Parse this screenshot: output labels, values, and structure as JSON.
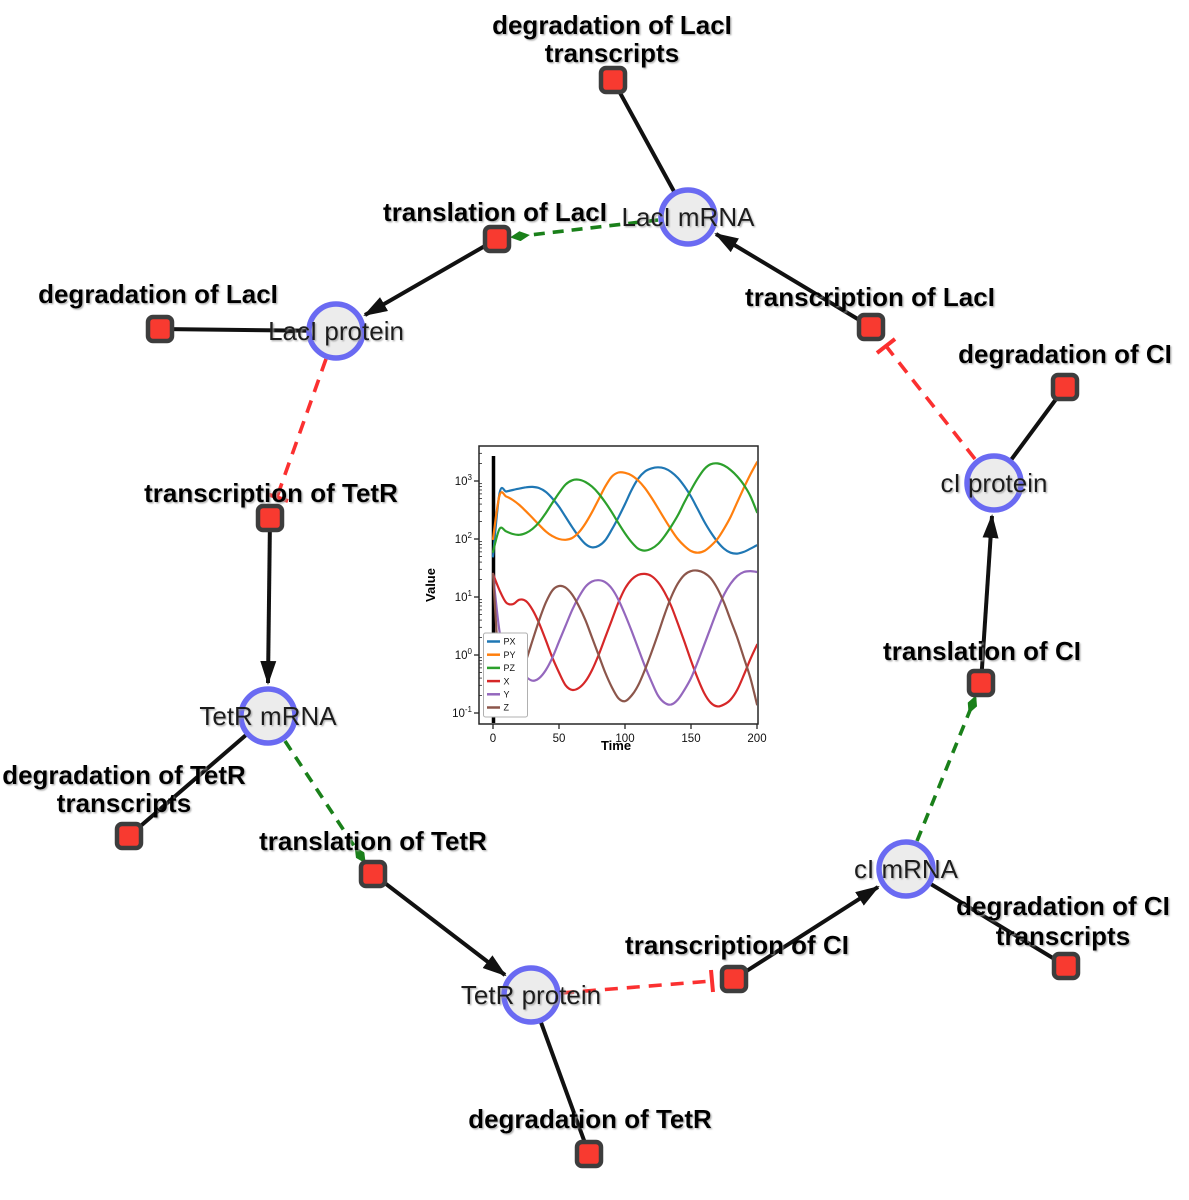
{
  "diagram": {
    "species": {
      "laci_mrna": {
        "label": "LacI mRNA"
      },
      "laci_protein": {
        "label": "LacI protein"
      },
      "tetr_mrna": {
        "label": "TetR mRNA"
      },
      "tetr_protein": {
        "label": "TetR protein"
      },
      "ci_mrna": {
        "label": "cI mRNA"
      },
      "ci_protein": {
        "label": "cI protein"
      }
    },
    "reactions": {
      "deg_laci_tx": {
        "line1": "degradation of LacI",
        "line2": "transcripts"
      },
      "tl_laci": {
        "label": "translation of LacI"
      },
      "tx_laci": {
        "label": "transcription of LacI"
      },
      "deg_laci": {
        "label": "degradation of LacI"
      },
      "tx_tetr": {
        "label": "transcription of TetR"
      },
      "deg_tetr_tx": {
        "line1": "degradation of TetR",
        "line2": "transcripts"
      },
      "tl_tetr": {
        "label": "translation of TetR"
      },
      "deg_tetr": {
        "label": "degradation of TetR"
      },
      "tx_ci": {
        "label": "transcription of CI"
      },
      "deg_ci_tx": {
        "line1": "degradation of CI",
        "line2": "transcripts"
      },
      "tl_ci": {
        "label": "translation of CI"
      },
      "deg_ci": {
        "label": "degradation of CI"
      }
    },
    "edges": [
      {
        "from": "LacI mRNA",
        "to": "degradation of LacI transcripts",
        "type": "reactant"
      },
      {
        "from": "LacI protein",
        "to": "degradation of LacI",
        "type": "reactant"
      },
      {
        "from": "TetR mRNA",
        "to": "degradation of TetR transcripts",
        "type": "reactant"
      },
      {
        "from": "TetR protein",
        "to": "degradation of TetR",
        "type": "reactant"
      },
      {
        "from": "cI mRNA",
        "to": "degradation of CI transcripts",
        "type": "reactant"
      },
      {
        "from": "cI protein",
        "to": "degradation of CI",
        "type": "reactant"
      },
      {
        "from": "translation of LacI",
        "to": "LacI protein",
        "type": "product"
      },
      {
        "from": "transcription of LacI",
        "to": "LacI mRNA",
        "type": "product"
      },
      {
        "from": "transcription of TetR",
        "to": "TetR mRNA",
        "type": "product"
      },
      {
        "from": "translation of TetR",
        "to": "TetR protein",
        "type": "product"
      },
      {
        "from": "transcription of CI",
        "to": "cI mRNA",
        "type": "product"
      },
      {
        "from": "translation of CI",
        "to": "cI protein",
        "type": "product"
      },
      {
        "from": "LacI mRNA",
        "to": "translation of LacI",
        "type": "modifier"
      },
      {
        "from": "TetR mRNA",
        "to": "translation of TetR",
        "type": "modifier"
      },
      {
        "from": "cI mRNA",
        "to": "translation of CI",
        "type": "modifier"
      },
      {
        "from": "LacI protein",
        "to": "transcription of TetR",
        "type": "inhibition"
      },
      {
        "from": "TetR protein",
        "to": "transcription of CI",
        "type": "inhibition"
      },
      {
        "from": "cI protein",
        "to": "transcription of LacI",
        "type": "inhibition"
      }
    ],
    "colors": {
      "species_fill": "#ececec",
      "species_stroke": "#6a6af2",
      "reaction_fill": "#f83a30",
      "reaction_stroke": "#3d3d3d",
      "edge": "#111111",
      "modifier": "#1a801a",
      "inhibition": "#fb3030"
    }
  },
  "chart_data": {
    "type": "line",
    "title": "",
    "xlabel": "Time",
    "ylabel": "Value",
    "yscale": "log",
    "xlim": [
      -10,
      201
    ],
    "ylim_exponents": [
      -1.2,
      3.6
    ],
    "x_ticks": [
      0,
      50,
      100,
      150,
      200
    ],
    "y_tick_exponents": [
      -1,
      0,
      1,
      2,
      3
    ],
    "vline_x": 0,
    "legend_position": "lower left",
    "t_step": 5,
    "series": [
      {
        "name": "PX",
        "color": "#1f77b4",
        "values": [
          50,
          620,
          660,
          700,
          740,
          780,
          790,
          755,
          650,
          500,
          360,
          240,
          160,
          110,
          82,
          72,
          76,
          95,
          145,
          235,
          400,
          700,
          1100,
          1450,
          1650,
          1720,
          1650,
          1430,
          1130,
          810,
          540,
          330,
          200,
          130,
          90,
          68,
          58,
          56,
          60,
          68,
          78
        ]
      },
      {
        "name": "PY",
        "color": "#ff7f0e",
        "values": [
          100,
          570,
          540,
          470,
          385,
          300,
          230,
          175,
          135,
          112,
          100,
          97,
          104,
          130,
          185,
          290,
          480,
          800,
          1190,
          1400,
          1385,
          1250,
          1020,
          760,
          520,
          340,
          220,
          145,
          100,
          76,
          62,
          58,
          62,
          76,
          100,
          150,
          240,
          430,
          760,
          1300,
          2100
        ]
      },
      {
        "name": "PZ",
        "color": "#2ca02c",
        "values": [
          60,
          150,
          135,
          122,
          118,
          127,
          150,
          195,
          280,
          420,
          620,
          870,
          1030,
          1055,
          960,
          800,
          610,
          430,
          290,
          188,
          125,
          88,
          68,
          63,
          68,
          82,
          112,
          165,
          255,
          430,
          700,
          1100,
          1600,
          1950,
          2010,
          1850,
          1550,
          1200,
          860,
          550,
          290
        ]
      },
      {
        "name": "X",
        "color": "#d62728",
        "values": [
          25,
          13,
          8,
          7.5,
          9,
          8.5,
          6,
          3.5,
          1.8,
          0.9,
          0.5,
          0.3,
          0.25,
          0.27,
          0.35,
          0.55,
          1.0,
          2.0,
          4.0,
          8,
          14,
          20,
          24,
          25,
          23,
          18,
          12,
          7,
          3.5,
          1.7,
          0.8,
          0.4,
          0.22,
          0.15,
          0.13,
          0.14,
          0.17,
          0.25,
          0.45,
          0.85,
          1.5
        ]
      },
      {
        "name": "Y",
        "color": "#9467bd",
        "values": [
          25,
          2.5,
          0.9,
          0.75,
          0.55,
          0.42,
          0.36,
          0.4,
          0.55,
          0.9,
          1.7,
          3.2,
          6,
          10,
          15,
          18.5,
          19.5,
          18,
          14,
          9,
          5,
          2.6,
          1.3,
          0.65,
          0.35,
          0.2,
          0.15,
          0.14,
          0.17,
          0.25,
          0.4,
          0.75,
          1.5,
          3,
          6,
          11,
          17,
          23,
          27,
          28,
          27
        ]
      },
      {
        "name": "Z",
        "color": "#8c564b",
        "values": [
          25,
          0.5,
          0.2,
          0.25,
          0.4,
          0.8,
          1.8,
          4,
          8,
          13,
          15.5,
          14.5,
          11,
          7,
          4,
          2,
          1.0,
          0.5,
          0.28,
          0.18,
          0.16,
          0.2,
          0.3,
          0.55,
          1.1,
          2.3,
          5,
          10,
          17,
          24,
          28,
          28.5,
          26,
          21,
          14,
          8,
          4,
          2,
          0.9,
          0.4,
          0.14
        ]
      }
    ]
  }
}
